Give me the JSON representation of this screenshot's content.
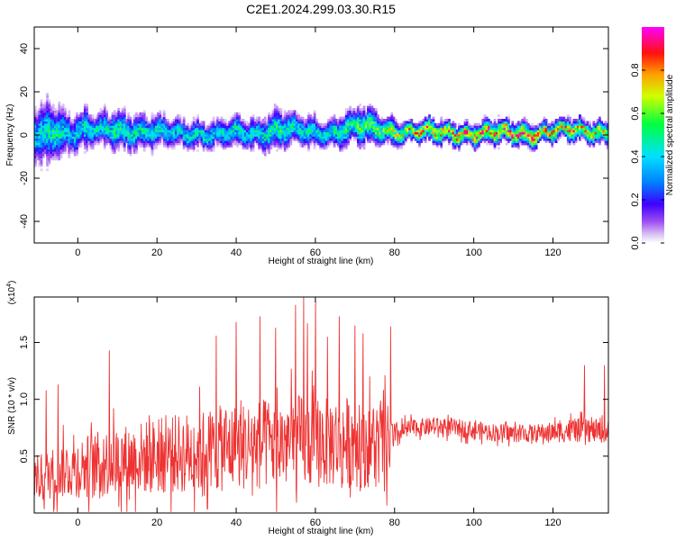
{
  "title": "C2E1.2024.299.03.30.R15",
  "chart_data": [
    {
      "type": "heatmap",
      "xlabel": "Height of straight line (km)",
      "ylabel": "Frequency (Hz)",
      "xlim": [
        -11,
        134
      ],
      "ylim": [
        -50,
        50
      ],
      "xticks": [
        0,
        20,
        40,
        60,
        80,
        100,
        120
      ],
      "xtick_labels": [
        "0",
        "20",
        "40",
        "60",
        "80",
        "100",
        "120"
      ],
      "yticks": [
        -40,
        -20,
        0,
        20,
        40
      ],
      "ytick_labels": [
        "-40",
        "-20",
        "0",
        "20",
        "40"
      ],
      "colorbar": {
        "label": "Normalized spectral amplitude",
        "range": [
          0,
          1
        ],
        "ticks": [
          0.0,
          0.2,
          0.4,
          0.6,
          0.8
        ],
        "tick_labels": [
          "0.0",
          "0.2",
          "0.4",
          "0.6",
          "0.8"
        ],
        "colormap": "rainbow (purple-blue-cyan-green-yellow-red-magenta)"
      },
      "band_profile": {
        "x": [
          -10,
          -8,
          -6,
          -4,
          -2,
          0,
          5,
          10,
          15,
          20,
          25,
          30,
          35,
          40,
          45,
          50,
          55,
          60,
          65,
          70,
          75,
          80,
          85,
          90,
          95,
          100,
          105,
          110,
          115,
          120,
          125,
          130,
          133
        ],
        "center_hz": [
          0,
          1,
          3,
          2,
          1,
          2,
          2,
          3,
          2,
          1,
          1,
          1,
          0,
          1,
          1,
          3,
          2,
          1,
          2,
          4,
          3,
          2,
          2,
          1,
          1,
          1,
          1,
          1,
          1,
          2,
          2,
          2,
          2
        ],
        "half_width_hz": [
          12,
          14,
          12,
          10,
          9,
          9,
          8,
          8,
          7,
          7,
          6,
          6,
          6,
          6,
          7,
          8,
          7,
          7,
          7,
          8,
          7,
          6,
          5,
          5,
          5,
          5,
          5,
          5,
          5,
          5,
          5,
          5,
          5
        ],
        "peak_amplitude": [
          0.45,
          0.5,
          0.55,
          0.45,
          0.4,
          0.5,
          0.45,
          0.55,
          0.5,
          0.5,
          0.45,
          0.5,
          0.45,
          0.5,
          0.45,
          0.55,
          0.5,
          0.5,
          0.5,
          0.6,
          0.65,
          0.7,
          0.8,
          0.85,
          0.9,
          0.9,
          0.95,
          0.9,
          0.9,
          0.85,
          0.85,
          0.8,
          0.8
        ]
      }
    },
    {
      "type": "line",
      "xlabel": "Height of straight line (km)",
      "ylabel": "SNR (10 * v/v)",
      "scale_label": "(x10",
      "scale_exponent": "4",
      "scale_close": ")",
      "xlim": [
        -11,
        134
      ],
      "ylim": [
        0,
        19000
      ],
      "xticks": [
        0,
        20,
        40,
        60,
        80,
        100,
        120
      ],
      "xtick_labels": [
        "0",
        "20",
        "40",
        "60",
        "80",
        "100",
        "120"
      ],
      "yticks": [
        5000,
        10000,
        15000
      ],
      "ytick_labels": [
        "0.5",
        "1.0",
        "1.5"
      ],
      "color": "#ee3333",
      "series": [
        {
          "x": [
            -11,
            -8,
            -4,
            0,
            5,
            10,
            15,
            20,
            25,
            30,
            35,
            40,
            45,
            50,
            55,
            60,
            65,
            70,
            75,
            78,
            80,
            82,
            85,
            90,
            95,
            100,
            105,
            110,
            115,
            120,
            125,
            130,
            134
          ],
          "mean": [
            3000,
            3300,
            3800,
            4000,
            4300,
            4600,
            4800,
            5000,
            5200,
            5400,
            5600,
            5800,
            6000,
            6100,
            6200,
            6300,
            6300,
            6200,
            6100,
            6000,
            6500,
            7200,
            7500,
            7600,
            7500,
            7300,
            7100,
            7000,
            7000,
            7100,
            7300,
            7200,
            7100
          ],
          "spread": [
            2000,
            2200,
            2500,
            2700,
            2900,
            3100,
            3200,
            3400,
            3500,
            3700,
            3800,
            3900,
            4000,
            4100,
            4200,
            4200,
            4100,
            4000,
            3900,
            3800,
            1500,
            900,
            800,
            800,
            800,
            800,
            800,
            800,
            800,
            900,
            1100,
            1000,
            1000
          ],
          "peaks": [
            [
              -8,
              10800
            ],
            [
              -5,
              11300
            ],
            [
              8,
              14300
            ],
            [
              35,
              15600
            ],
            [
              40,
              16800
            ],
            [
              46,
              17300
            ],
            [
              50,
              16300
            ],
            [
              55,
              18300
            ],
            [
              57,
              19000
            ],
            [
              58,
              16700
            ],
            [
              60,
              18700
            ],
            [
              63,
              15500
            ],
            [
              66,
              17300
            ],
            [
              70,
              16500
            ],
            [
              72,
              15800
            ],
            [
              79,
              16400
            ],
            [
              128,
              13000
            ],
            [
              133,
              13000
            ]
          ]
        }
      ]
    }
  ]
}
